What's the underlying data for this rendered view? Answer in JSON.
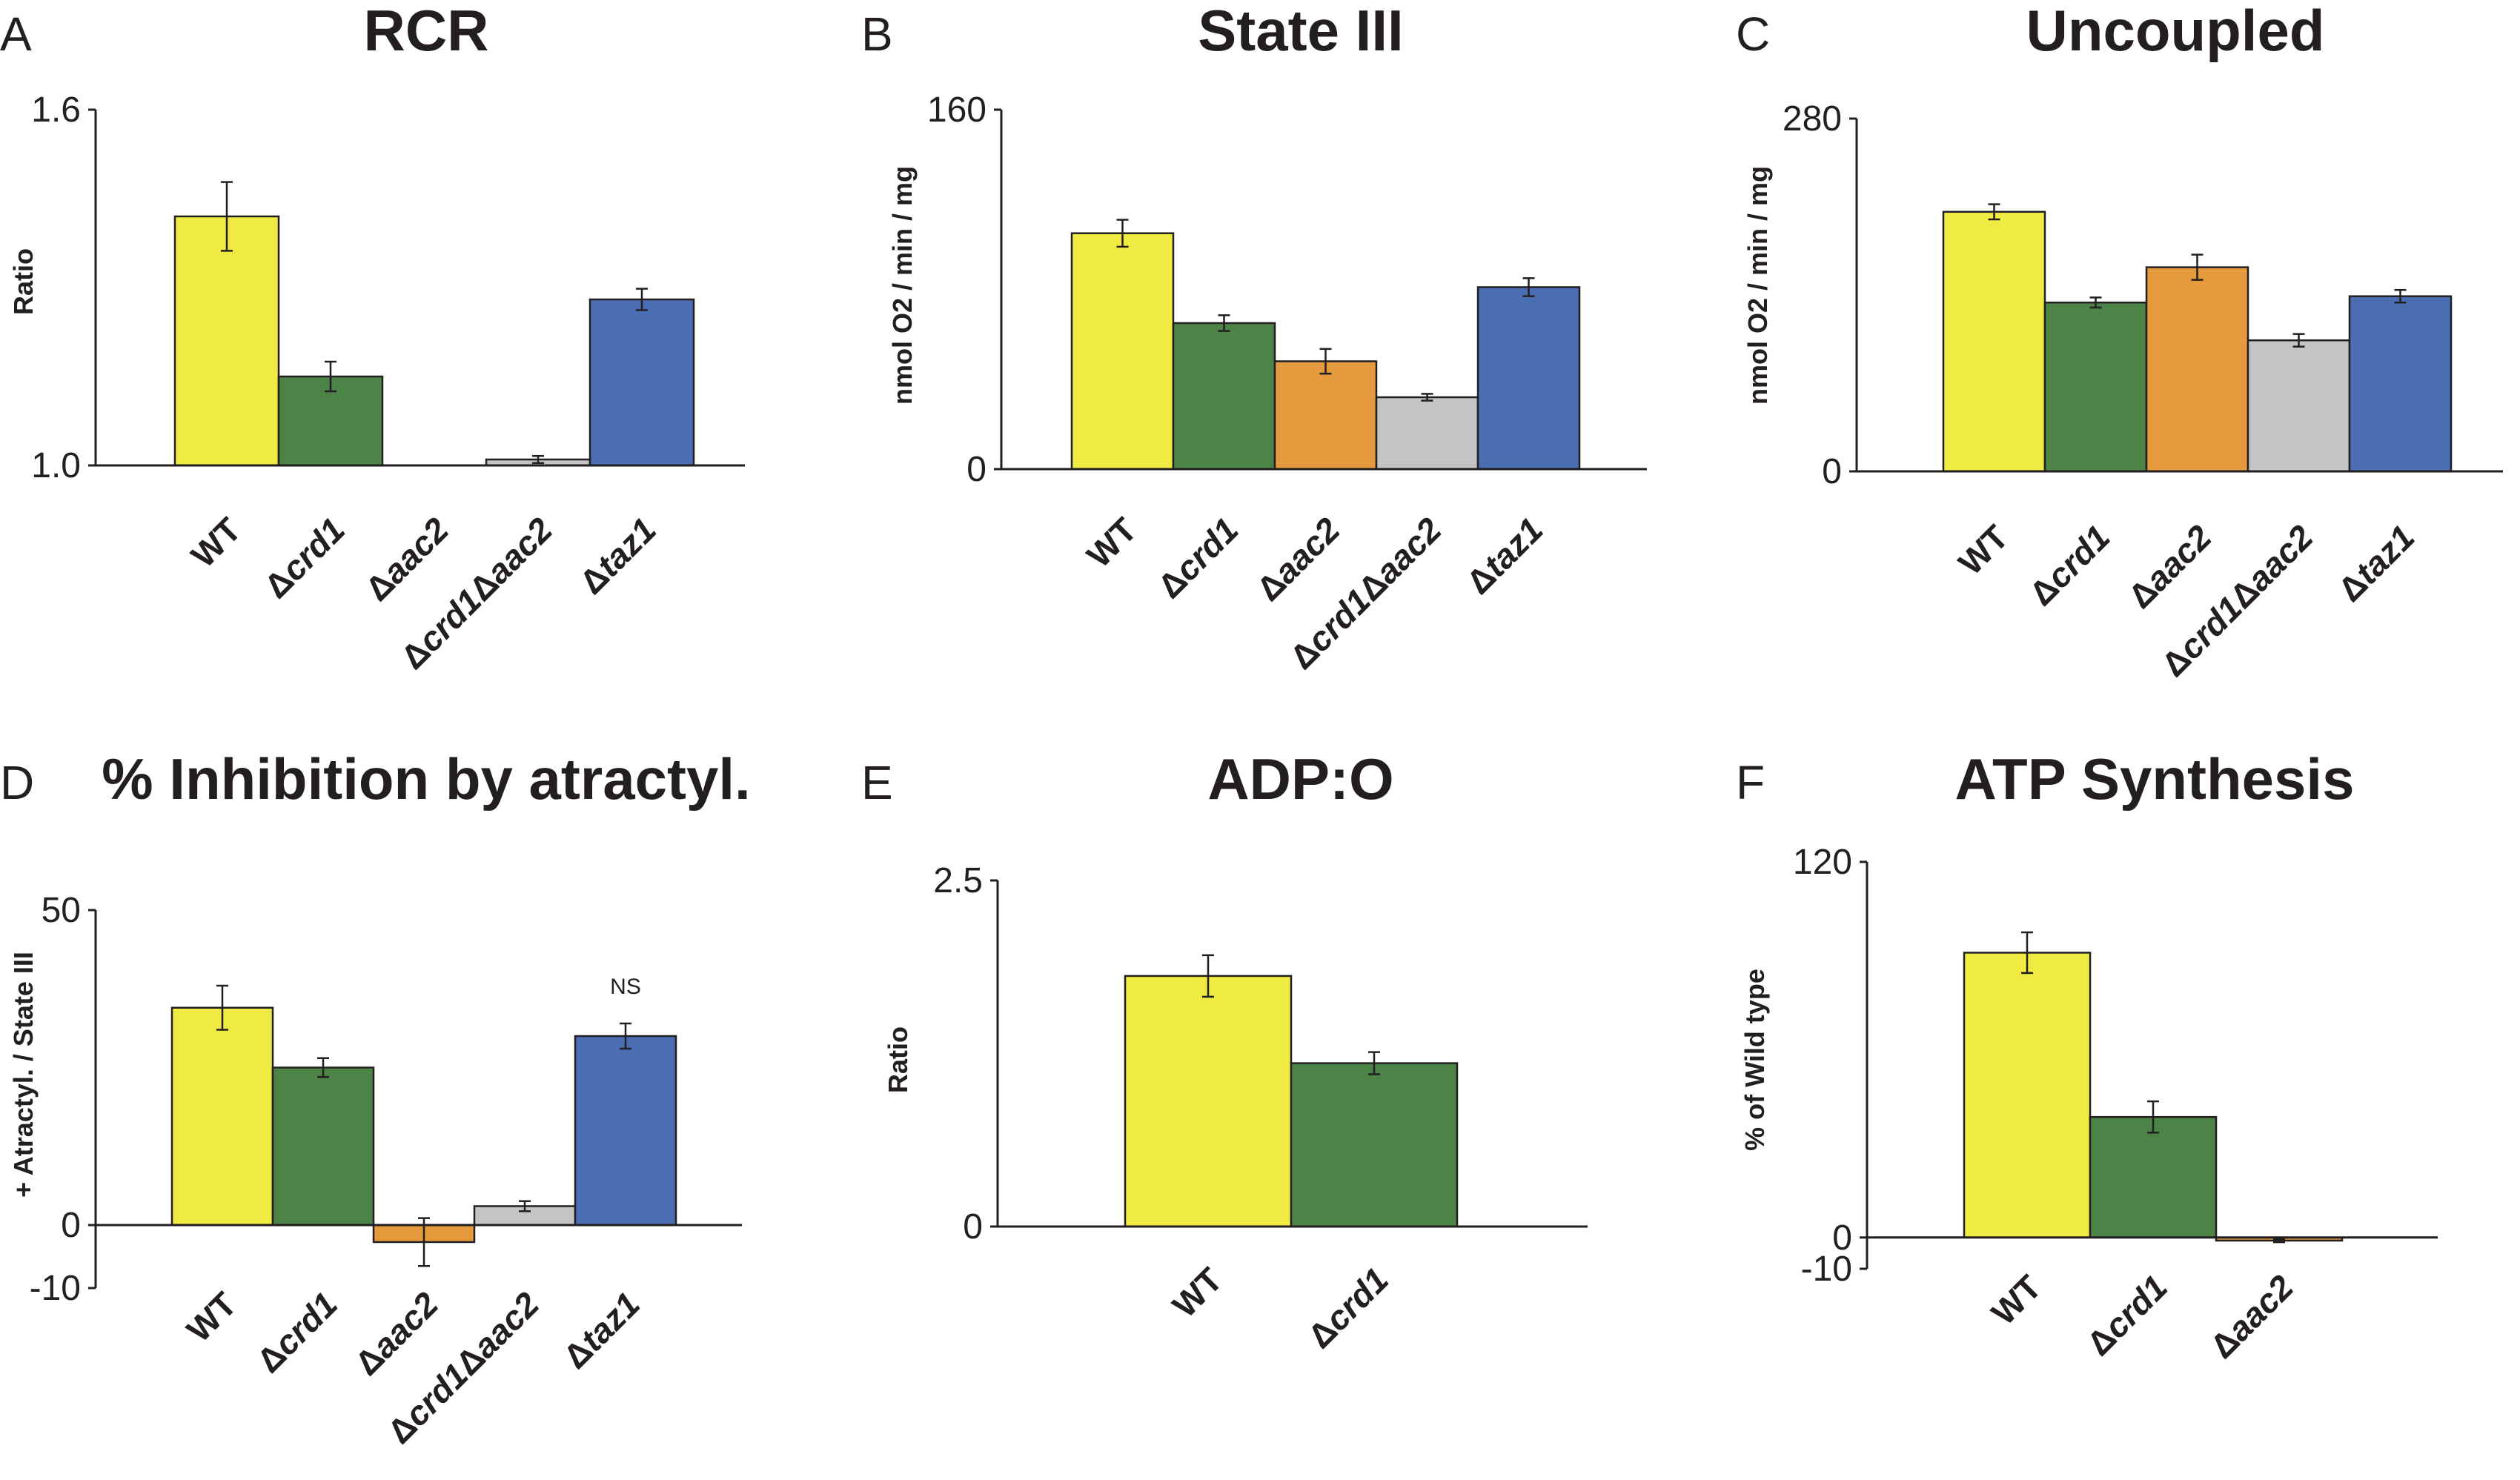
{
  "chart_data": [
    {
      "panel": "A",
      "type": "bar",
      "title": "RCR",
      "ylabel": "Ratio",
      "ylim": [
        1.0,
        1.6
      ],
      "yticks": [
        "1.6",
        "1.0"
      ],
      "categories": [
        "WT",
        "Δcrd1",
        "Δaac2",
        "Δcrd1Δaac2",
        "Δtaz1"
      ],
      "values": [
        1.42,
        1.15,
        null,
        1.01,
        1.28
      ],
      "errors": [
        0.058,
        0.025,
        null,
        0.006,
        0.018
      ],
      "colors": [
        "#f0eb43",
        "#4b8446",
        "#e59a3d",
        "#c4c4c4",
        "#4b6db2"
      ],
      "annotations": [
        "",
        "",
        "",
        "",
        ""
      ]
    },
    {
      "panel": "B",
      "type": "bar",
      "title": "State III",
      "ylabel": "nmol O2 / min / mg",
      "ylim": [
        0,
        160
      ],
      "yticks": [
        "160",
        "0"
      ],
      "categories": [
        "WT",
        "Δcrd1",
        "Δaac2",
        "Δcrd1Δaac2",
        "Δtaz1"
      ],
      "values": [
        105,
        65,
        48,
        32,
        81
      ],
      "errors": [
        6,
        3.5,
        5.5,
        1.5,
        4
      ],
      "colors": [
        "#f0eb43",
        "#4b8446",
        "#e59a3d",
        "#c4c4c4",
        "#4b6db2"
      ],
      "annotations": [
        "",
        "",
        "",
        "",
        ""
      ]
    },
    {
      "panel": "C",
      "type": "bar",
      "title": "Uncoupled",
      "ylabel": "nmol O2 / min / mg",
      "ylim": [
        0,
        280
      ],
      "yticks": [
        "280",
        "0"
      ],
      "categories": [
        "WT",
        "Δcrd1",
        "Δaac2",
        "Δcrd1Δaac2",
        "Δtaz1"
      ],
      "values": [
        206,
        134,
        162,
        104,
        139
      ],
      "errors": [
        6,
        4,
        10,
        5,
        5
      ],
      "colors": [
        "#f0eb43",
        "#4b8446",
        "#e59a3d",
        "#c4c4c4",
        "#4b6db2"
      ],
      "annotations": [
        "",
        "",
        "",
        "",
        ""
      ]
    },
    {
      "panel": "D",
      "type": "bar",
      "title": "% Inhibition by atractyl.",
      "ylabel": "+ Atractyl. / State III",
      "ylim": [
        -10,
        50
      ],
      "yticks": [
        "50",
        "0",
        "-10"
      ],
      "categories": [
        "WT",
        "Δcrd1",
        "Δaac2",
        "Δcrd1Δaac2",
        "Δtaz1"
      ],
      "values": [
        34.5,
        25,
        -2.7,
        3,
        30
      ],
      "errors": [
        3.5,
        1.5,
        3.8,
        0.8,
        2
      ],
      "colors": [
        "#f0eb43",
        "#4b8446",
        "#e59a3d",
        "#c4c4c4",
        "#4b6db2"
      ],
      "annotations": [
        "",
        "",
        "",
        "",
        "NS"
      ]
    },
    {
      "panel": "E",
      "type": "bar",
      "title": "ADP:O",
      "ylabel": "Ratio",
      "ylim": [
        0,
        2.5
      ],
      "yticks": [
        "2.5",
        "0"
      ],
      "categories": [
        "WT",
        "Δcrd1"
      ],
      "values": [
        1.81,
        1.18
      ],
      "errors": [
        0.15,
        0.08
      ],
      "colors": [
        "#f0eb43",
        "#4b8446"
      ],
      "annotations": [
        "",
        ""
      ]
    },
    {
      "panel": "F",
      "type": "bar",
      "title": "ATP Synthesis",
      "ylabel": "% of Wild type",
      "ylim": [
        -10,
        120
      ],
      "yticks": [
        "120",
        "0",
        "-10"
      ],
      "categories": [
        "WT",
        "Δcrd1",
        "Δaac2"
      ],
      "values": [
        91,
        38.5,
        -1
      ],
      "errors": [
        6.5,
        5,
        0.5
      ],
      "colors": [
        "#f0eb43",
        "#4b8446",
        "#e59a3d"
      ],
      "annotations": [
        "",
        "",
        ""
      ]
    }
  ]
}
